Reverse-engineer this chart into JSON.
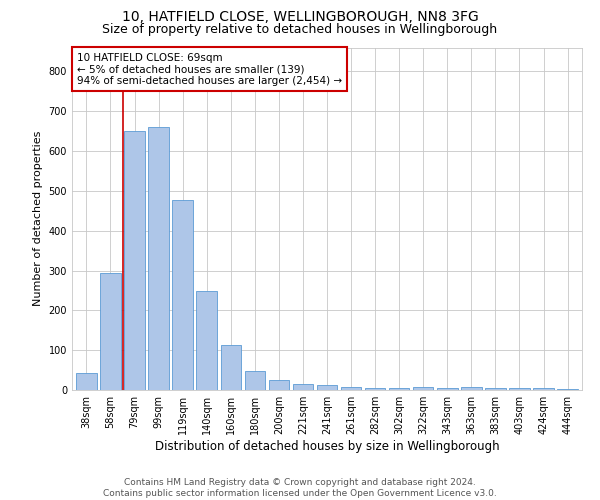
{
  "title1": "10, HATFIELD CLOSE, WELLINGBOROUGH, NN8 3FG",
  "title2": "Size of property relative to detached houses in Wellingborough",
  "xlabel": "Distribution of detached houses by size in Wellingborough",
  "ylabel": "Number of detached properties",
  "categories": [
    "38sqm",
    "58sqm",
    "79sqm",
    "99sqm",
    "119sqm",
    "140sqm",
    "160sqm",
    "180sqm",
    "200sqm",
    "221sqm",
    "241sqm",
    "261sqm",
    "282sqm",
    "302sqm",
    "322sqm",
    "343sqm",
    "363sqm",
    "383sqm",
    "403sqm",
    "424sqm",
    "444sqm"
  ],
  "values": [
    43,
    293,
    650,
    660,
    478,
    248,
    113,
    48,
    25,
    14,
    13,
    8,
    6,
    6,
    8,
    6,
    8,
    4,
    4,
    5,
    3
  ],
  "bar_color": "#aec6e8",
  "bar_edge_color": "#5b9bd5",
  "vline_x": 1.5,
  "vline_color": "#cc0000",
  "annotation_line1": "10 HATFIELD CLOSE: 69sqm",
  "annotation_line2": "← 5% of detached houses are smaller (139)",
  "annotation_line3": "94% of semi-detached houses are larger (2,454) →",
  "annotation_box_color": "#ffffff",
  "annotation_box_edge": "#cc0000",
  "ylim": [
    0,
    860
  ],
  "yticks": [
    0,
    100,
    200,
    300,
    400,
    500,
    600,
    700,
    800
  ],
  "grid_color": "#c8c8c8",
  "background_color": "#ffffff",
  "footer1": "Contains HM Land Registry data © Crown copyright and database right 2024.",
  "footer2": "Contains public sector information licensed under the Open Government Licence v3.0.",
  "title1_fontsize": 10,
  "title2_fontsize": 9,
  "xlabel_fontsize": 8.5,
  "ylabel_fontsize": 8,
  "tick_fontsize": 7,
  "annotation_fontsize": 7.5,
  "footer_fontsize": 6.5
}
